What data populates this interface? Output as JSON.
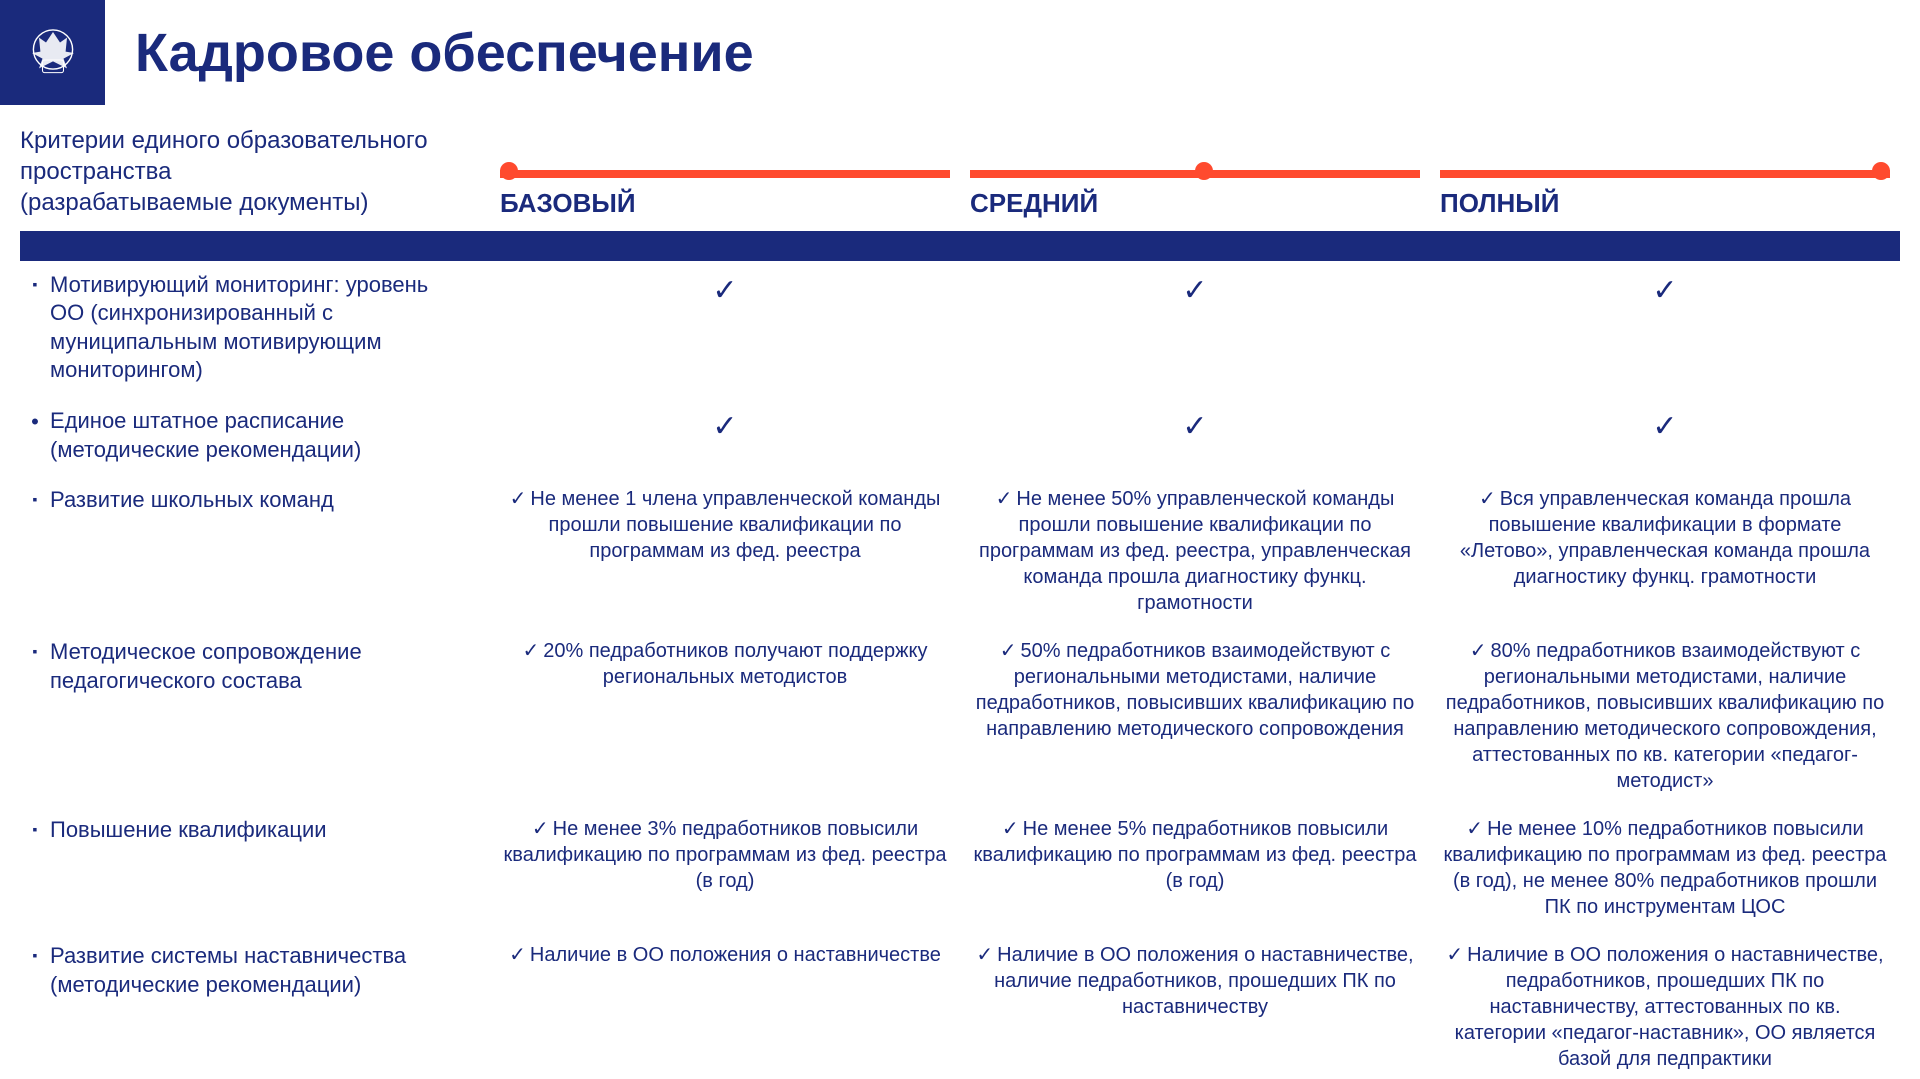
{
  "colors": {
    "brand_blue": "#1a2a7c",
    "accent_orange": "#ff4a2e",
    "background": "#ffffff"
  },
  "title": "Кадровое обеспечение",
  "subtitle": "Критерии единого образовательного пространства\n(разрабатываемые документы)",
  "levels": [
    {
      "label": "БАЗОВЫЙ",
      "knob_pos_pct": 0
    },
    {
      "label": "СРЕДНИЙ",
      "knob_pos_pct": 50
    },
    {
      "label": "ПОЛНЫЙ",
      "knob_pos_pct": 96
    }
  ],
  "rows": [
    {
      "bullet": "square",
      "label": "Мотивирующий мониторинг: уровень ОО (синхронизированный с муниципальным мотивирующим мониторингом)",
      "cells": [
        "",
        "",
        ""
      ],
      "check_only": true
    },
    {
      "bullet": "dot",
      "label": "Единое штатное расписание (методические рекомендации)",
      "cells": [
        "",
        "",
        ""
      ],
      "check_only": true
    },
    {
      "bullet": "square",
      "label": "Развитие школьных команд",
      "cells": [
        "Не менее 1 члена управленческой команды прошли повышение квалификации по программам из фед. реестра",
        "Не менее 50% управленческой команды прошли повышение квалификации по программам из фед. реестра, управленческая команда прошла диагностику функц. грамотности",
        "Вся управленческая команда прошла повышение квалификации в формате «Летово», управленческая команда прошла диагностику функц. грамотности"
      ],
      "check_only": false
    },
    {
      "bullet": "square",
      "label": "Методическое сопровождение педагогического состава",
      "cells": [
        "20% педработников получают поддержку региональных методистов",
        "50% педработников взаимодействуют с региональными методистами, наличие педработников, повысивших квалификацию по направлению методического сопровождения",
        "80% педработников взаимодействуют с региональными методистами, наличие педработников, повысивших квалификацию по направлению методического сопровождения, аттестованных по кв. категории «педагог-методист»"
      ],
      "check_only": false
    },
    {
      "bullet": "square",
      "label": "Повышение квалификации",
      "cells": [
        "Не менее 3% педработников повысили квалификацию по программам из фед. реестра (в год)",
        "Не менее 5% педработников повысили квалификацию по программам из фед. реестра (в год)",
        "Не менее 10% педработников повысили квалификацию по программам из фед. реестра (в год), не менее 80% педработников прошли ПК по инструментам ЦОС"
      ],
      "check_only": false
    },
    {
      "bullet": "square",
      "label": "Развитие системы наставничества (методические рекомендации)",
      "cells": [
        "Наличие в ОО положения о наставничестве",
        "Наличие в ОО положения о наставничестве, наличие педработников, прошедших ПК по наставничеству",
        "Наличие в ОО положения о наставничестве, педработников, прошедших ПК по наставничеству, аттестованных по кв. категории «педагог-наставник», ОО является базой для педпрактики"
      ],
      "check_only": false
    }
  ]
}
